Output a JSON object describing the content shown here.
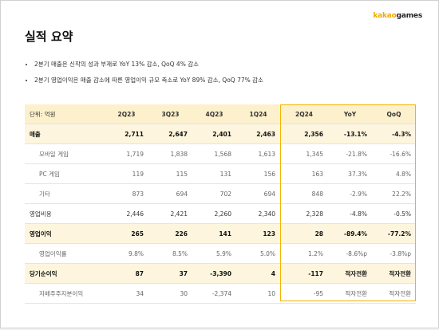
{
  "logo": [
    "kakao",
    "games"
  ],
  "title": "실적 요약",
  "bullets": [
    "2분기 매출은 신작의 성과 부재로 YoY 13% 감소, QoQ 4% 감소",
    "2분기 영업이익은 매출 감소에 따른 영업이익 규모 축소로 YoY 89% 감소, QoQ 77% 감소"
  ],
  "table": {
    "header": [
      "단위: 억원",
      "2Q23",
      "3Q23",
      "4Q23",
      "1Q24",
      "2Q24",
      "YoY",
      "QoQ"
    ],
    "rows": [
      [
        "매출",
        "2,711",
        "2,647",
        "2,401",
        "2,463",
        "2,356",
        "-13.1%",
        "-4.3%"
      ],
      [
        "모바일 게임",
        "1,719",
        "1,838",
        "1,568",
        "1,613",
        "1,345",
        "-21.8%",
        "-16.6%"
      ],
      [
        "PC 게임",
        "119",
        "115",
        "131",
        "156",
        "163",
        "37.3%",
        "4.8%"
      ],
      [
        "기타",
        "873",
        "694",
        "702",
        "694",
        "848",
        "-2.9%",
        "22.2%"
      ],
      [
        "영업비용",
        "2,446",
        "2,421",
        "2,260",
        "2,340",
        "2,328",
        "-4.8%",
        "-0.5%"
      ],
      [
        "영업이익",
        "265",
        "226",
        "141",
        "123",
        "28",
        "-89.4%",
        "-77.2%"
      ],
      [
        "영업이익률",
        "9.8%",
        "8.5%",
        "5.9%",
        "5.0%",
        "1.2%",
        "-8.6%p",
        "-3.8%p"
      ],
      [
        "당기순이익",
        "87",
        "37",
        "-3,390",
        "4",
        "-117",
        "적자전환",
        "적자전환"
      ],
      [
        "지배주주지분이익",
        "34",
        "30",
        "-2,374",
        "10",
        "-95",
        "적자전환",
        "적자전환"
      ]
    ]
  }
}
